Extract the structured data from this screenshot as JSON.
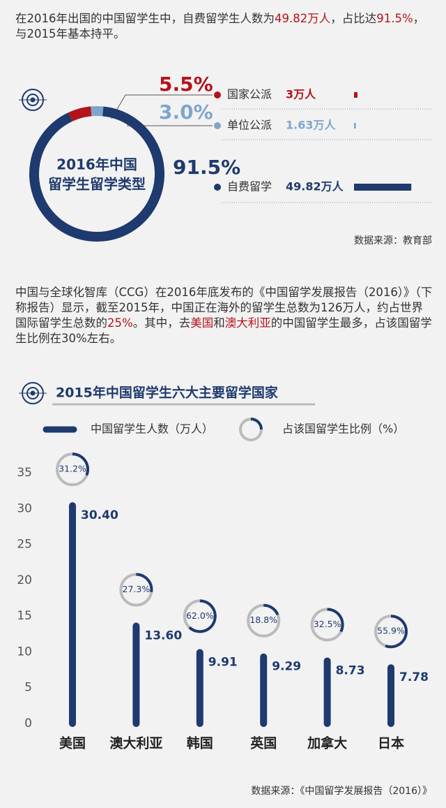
{
  "intro": {
    "segments": [
      "在2016年出国的中国留学生中，自费留学生人数为",
      "49.82万人",
      "，占比达",
      "91.5%",
      "，与2015年基本持平。"
    ]
  },
  "chart_data": [
    {
      "type": "donut",
      "title": [
        "2016年中国",
        "留学生留学类型"
      ],
      "categories": [
        "国家公派",
        "单位公派",
        "自费留学"
      ],
      "values": [
        5.5,
        3.0,
        91.5
      ],
      "value_labels": [
        "5.5%",
        "3.0%",
        "91.5%"
      ],
      "counts": [
        3,
        1.63,
        49.82
      ],
      "count_labels": [
        "3万人",
        "1.63万人",
        "49.82万人"
      ],
      "colors": [
        "#b5121b",
        "#7fa6cc",
        "#1e3a6e"
      ],
      "source": "数据来源：教育部"
    },
    {
      "type": "bar",
      "title": "2015年中国留学生六大主要留学国家",
      "categories": [
        "美国",
        "澳大利亚",
        "韩国",
        "英国",
        "加拿大",
        "日本"
      ],
      "series": [
        {
          "name": "中国留学生人数（万人）",
          "color": "#1e3a6e",
          "values": [
            30.4,
            13.6,
            9.91,
            9.29,
            8.73,
            7.78
          ],
          "value_labels": [
            "30.40",
            "13.60",
            "9.91",
            "9.29",
            "8.73",
            "7.78"
          ]
        },
        {
          "name": "占该国留学生比例（%）",
          "color": "#1e3a6e",
          "values": [
            31.2,
            27.3,
            62.0,
            18.8,
            32.5,
            55.9
          ],
          "value_labels": [
            "31.2%",
            "27.3%",
            "62.0%",
            "18.8%",
            "32.5%",
            "55.9%"
          ]
        }
      ],
      "ylim": [
        0,
        35
      ],
      "yticks": [
        0,
        5,
        10,
        15,
        20,
        25,
        30,
        35
      ],
      "source": "数据来源：《中国留学发展报告（2016）》"
    }
  ],
  "body": {
    "segments": [
      "中国与全球化智库（CCG）在2016年底发布的《中国留学发展报告（2016）》（下称报告）显示，截至2015年，中国正在海外的留学生总数为126万人，约占世界国际留学生总数的",
      "25%",
      "。其中，去",
      "美国",
      "和",
      "澳大利亚",
      "的中国留学生最多，占该国留学生比例在30%左右。"
    ]
  }
}
